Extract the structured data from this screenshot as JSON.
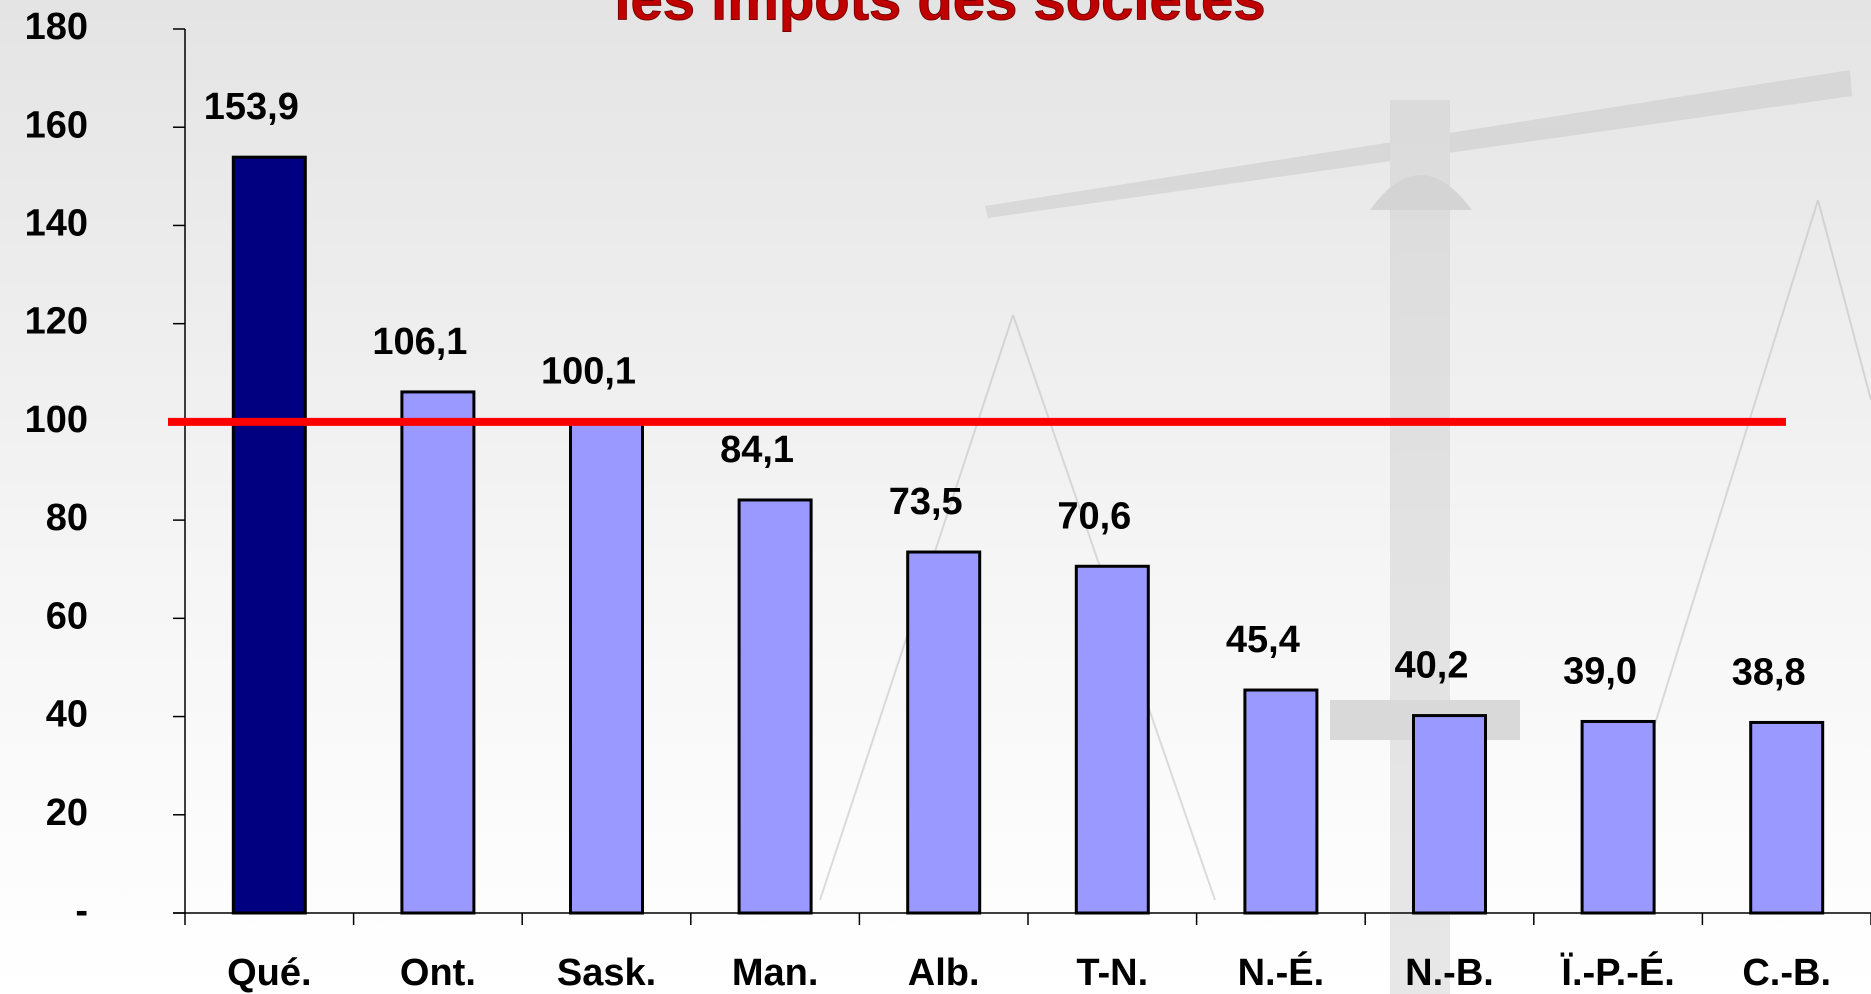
{
  "chart_data": {
    "type": "bar",
    "title": "les impôts des sociétés",
    "categories": [
      "Qué.",
      "Ont.",
      "Sask.",
      "Man.",
      "Alb.",
      "T-N.",
      "N.-É.",
      "N.-B.",
      "Ï.-P.-É.",
      "C.-B."
    ],
    "values": [
      153.9,
      106.1,
      100.1,
      84.1,
      73.5,
      70.6,
      45.4,
      40.2,
      39.0,
      38.8
    ],
    "value_labels": [
      "153,9",
      "106,1",
      "100,1",
      "84,1",
      "73,5",
      "70,6",
      "45,4",
      "40,2",
      "39,0",
      "38,8"
    ],
    "colors": [
      "#000080",
      "#9999ff",
      "#9999ff",
      "#9999ff",
      "#9999ff",
      "#9999ff",
      "#9999ff",
      "#9999ff",
      "#9999ff",
      "#9999ff"
    ],
    "ylim": [
      0,
      180
    ],
    "yticks": [
      {
        "value": 0,
        "label": "-"
      },
      20,
      40,
      60,
      80,
      100,
      120,
      140,
      160,
      180
    ],
    "reference_line": {
      "value": 100,
      "color": "#ff0000"
    },
    "grid": false
  }
}
